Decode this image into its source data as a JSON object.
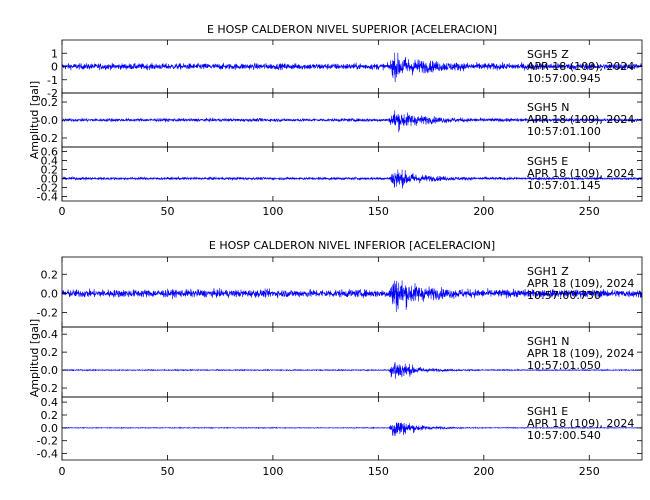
{
  "chart_data": [
    {
      "type": "line",
      "title": "E HOSP CALDERON NIVEL SUPERIOR [ACELERACION]",
      "ylabel": "Amplitud [gal]",
      "xlim": [
        0,
        275
      ],
      "xticks": [
        "0",
        "50",
        "100",
        "150",
        "200",
        "250"
      ],
      "traces": [
        {
          "station": "SGH5",
          "component": "Z",
          "date": "APR 18 (109), 2024",
          "time": "10:57:00.945",
          "ylim": [
            -2,
            2
          ],
          "yticks": [
            "-2",
            "-1",
            "0",
            "1"
          ],
          "noise_amp": 0.4,
          "event_amp": 1.55,
          "event_onset": 155,
          "decay": 14
        },
        {
          "station": "SGH5",
          "component": "N",
          "date": "APR 18 (109), 2024",
          "time": "10:57:01.100",
          "ylim": [
            -0.3,
            0.3
          ],
          "yticks": [
            "-0.2",
            "-0.0",
            "0.2"
          ],
          "noise_amp": 0.03,
          "event_amp": 0.22,
          "event_onset": 155,
          "decay": 12
        },
        {
          "station": "SGH5",
          "component": "E",
          "date": "APR 18 (109), 2024",
          "time": "10:57:01.145",
          "ylim": [
            -0.5,
            0.7
          ],
          "yticks": [
            "-0.4",
            "-0.2",
            "0.0",
            "0.2",
            "0.4",
            "0.6"
          ],
          "noise_amp": 0.05,
          "event_amp": 0.5,
          "event_onset": 155,
          "decay": 10
        }
      ]
    },
    {
      "type": "line",
      "title": "E HOSP CALDERON NIVEL INFERIOR [ACELERACION]",
      "ylabel": "Amplitud [gal]",
      "xlim": [
        0,
        275
      ],
      "xticks": [
        "0",
        "50",
        "100",
        "150",
        "200",
        "250"
      ],
      "traces": [
        {
          "station": "SGH1",
          "component": "Z",
          "date": "APR 18 (109), 2024",
          "time": "10:57:00.730",
          "ylim": [
            -0.35,
            0.38
          ],
          "yticks": [
            "-0.2",
            "0.0",
            "0.2"
          ],
          "noise_amp": 0.07,
          "event_amp": 0.35,
          "event_onset": 155,
          "decay": 10
        },
        {
          "station": "SGH1",
          "component": "N",
          "date": "APR 18 (109), 2024",
          "time": "10:57:01.050",
          "ylim": [
            -0.3,
            0.48
          ],
          "yticks": [
            "-0.2",
            "0.0",
            "0.2",
            "0.4"
          ],
          "noise_amp": 0.01,
          "event_amp": 0.33,
          "event_onset": 155,
          "decay": 8
        },
        {
          "station": "SGH1",
          "component": "E",
          "date": "APR 18 (109), 2024",
          "time": "10:57:00.540",
          "ylim": [
            -0.5,
            0.48
          ],
          "yticks": [
            "-0.4",
            "-0.2",
            "0.0",
            "0.2",
            "0.4"
          ],
          "noise_amp": 0.01,
          "event_amp": 0.42,
          "event_onset": 155,
          "decay": 8
        }
      ]
    }
  ],
  "colors": {
    "trace": "#0000ff",
    "axis": "#000000",
    "text": "#000000"
  }
}
